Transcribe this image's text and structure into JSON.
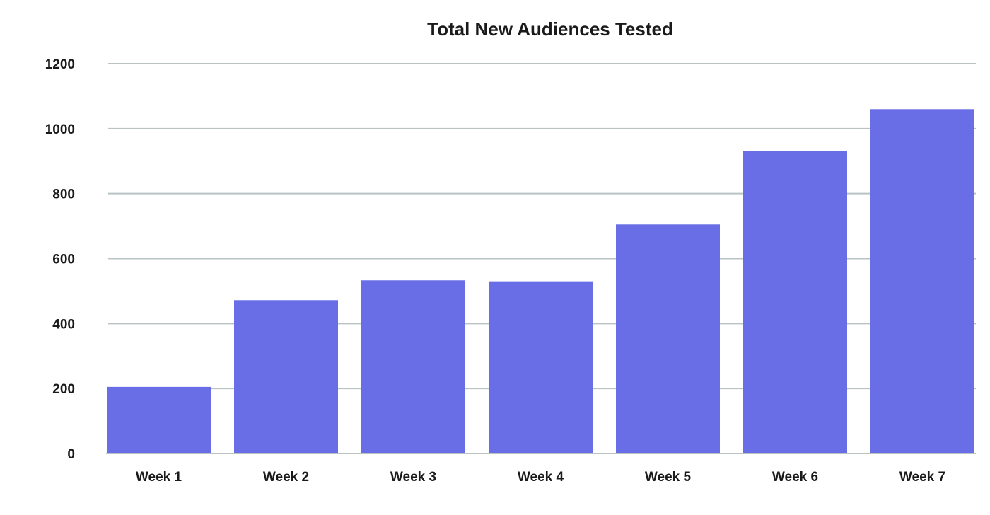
{
  "chart_data": {
    "type": "bar",
    "title": "Total New Audiences Tested",
    "xlabel": "",
    "ylabel": "",
    "categories": [
      "Week 1",
      "Week 2",
      "Week 3",
      "Week 4",
      "Week 5",
      "Week 6",
      "Week 7"
    ],
    "values": [
      205,
      472,
      533,
      530,
      705,
      930,
      1060
    ],
    "ylim": [
      0,
      1200
    ],
    "yticks": [
      "0",
      "200",
      "400",
      "600",
      "800",
      "1000",
      "1200"
    ],
    "ytick_values": [
      0,
      200,
      400,
      600,
      800,
      1000,
      1200
    ],
    "grid": true,
    "legend": "none",
    "colors": {
      "bar": "#6a6ee6",
      "grid": "#b9c3c3",
      "text": "#1a1a1a"
    }
  }
}
